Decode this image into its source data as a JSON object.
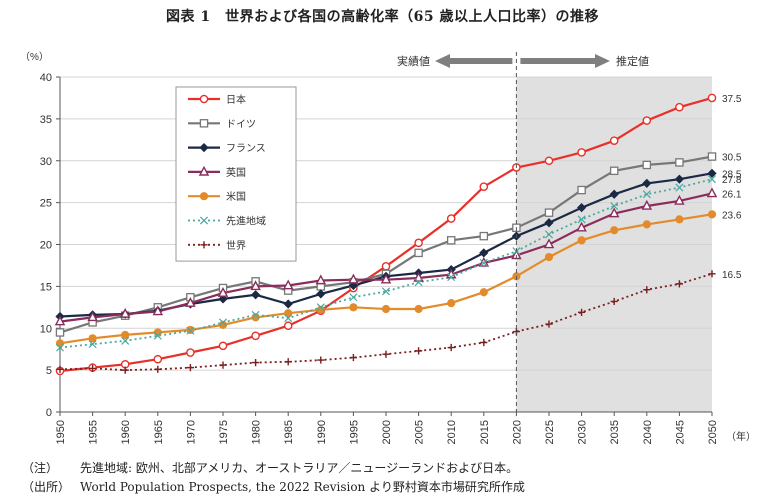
{
  "title": "図表 1　世界および各国の高齢化率（65 歳以上人口比率）の推移",
  "notes": [
    {
      "tag": "（注）",
      "text": "先進地域: 欧州、北部アメリカ、オーストラリア／ニュージーランドおよび日本。"
    },
    {
      "tag": "（出所）",
      "text": "World Population Prospects, the 2022 Revision より野村資本市場研究所作成"
    }
  ],
  "chart_data": {
    "type": "line",
    "title": "図表 1　世界および各国の高齢化率（65 歳以上人口比率）の推移",
    "ylabel": "（%）",
    "xlabel": "（年）",
    "ylim": [
      0,
      40
    ],
    "yticks": [
      0,
      5,
      10,
      15,
      20,
      25,
      30,
      35,
      40
    ],
    "x": [
      1950,
      1955,
      1960,
      1965,
      1970,
      1975,
      1980,
      1985,
      1990,
      1995,
      2000,
      2005,
      2010,
      2015,
      2020,
      2025,
      2030,
      2035,
      2040,
      2045,
      2050
    ],
    "grid": "horizontal",
    "legend_position": "top-left",
    "annotations": {
      "actual": "実績値",
      "projection": "推定値",
      "split_year": 2020,
      "projection_shaded": true,
      "shade_color": "#e0e0e0",
      "arrow_color": "#7f7f7f"
    },
    "series": [
      {
        "name": "日本",
        "color": "#e8302a",
        "marker": "circle-open",
        "line": "solid",
        "end_label": "37.5",
        "values": [
          4.9,
          5.3,
          5.7,
          6.3,
          7.1,
          7.9,
          9.1,
          10.3,
          12.1,
          14.8,
          17.4,
          20.2,
          23.1,
          26.9,
          29.2,
          30.0,
          31.0,
          32.4,
          34.8,
          36.4,
          37.5
        ]
      },
      {
        "name": "ドイツ",
        "color": "#777777",
        "marker": "square-open",
        "line": "solid",
        "end_label": "30.5",
        "values": [
          9.5,
          10.7,
          11.5,
          12.5,
          13.7,
          14.8,
          15.6,
          14.5,
          15.0,
          15.5,
          16.5,
          19.0,
          20.5,
          21.0,
          22.0,
          23.8,
          26.5,
          28.8,
          29.5,
          29.8,
          30.5
        ]
      },
      {
        "name": "フランス",
        "color": "#1b2a44",
        "marker": "diamond-filled",
        "line": "solid",
        "end_label": "28.5",
        "values": [
          11.4,
          11.6,
          11.7,
          12.1,
          12.9,
          13.5,
          14.0,
          12.9,
          14.1,
          15.1,
          16.2,
          16.6,
          17.0,
          19.0,
          21.0,
          22.6,
          24.4,
          26.0,
          27.3,
          27.8,
          28.5
        ]
      },
      {
        "name": "英国",
        "color": "#8b2d5c",
        "marker": "triangle-open",
        "line": "solid",
        "end_label": "26.1",
        "values": [
          10.8,
          11.3,
          11.7,
          12.0,
          13.0,
          14.2,
          15.0,
          15.1,
          15.7,
          15.8,
          15.8,
          16.0,
          16.4,
          17.8,
          18.7,
          20.0,
          22.0,
          23.7,
          24.6,
          25.2,
          26.1
        ]
      },
      {
        "name": "米国",
        "color": "#e38b2b",
        "marker": "circle-filled",
        "line": "solid",
        "end_label": "23.6",
        "values": [
          8.2,
          8.8,
          9.2,
          9.5,
          9.8,
          10.4,
          11.3,
          11.8,
          12.2,
          12.5,
          12.3,
          12.3,
          13.0,
          14.3,
          16.2,
          18.5,
          20.5,
          21.7,
          22.4,
          23.0,
          23.6
        ]
      },
      {
        "name": "先進地域",
        "color": "#4aa8a0",
        "marker": "x",
        "line": "dotted",
        "end_label": "27.8",
        "values": [
          7.7,
          8.1,
          8.5,
          9.1,
          9.7,
          10.7,
          11.6,
          11.2,
          12.5,
          13.7,
          14.4,
          15.5,
          16.1,
          17.8,
          19.2,
          21.2,
          23.0,
          24.6,
          26.0,
          26.8,
          27.8
        ]
      },
      {
        "name": "世界",
        "color": "#7a1e1e",
        "marker": "plus",
        "line": "dotted",
        "end_label": "16.5",
        "values": [
          5.1,
          5.2,
          5.0,
          5.1,
          5.3,
          5.6,
          5.9,
          6.0,
          6.2,
          6.5,
          6.9,
          7.3,
          7.7,
          8.3,
          9.6,
          10.5,
          11.9,
          13.2,
          14.6,
          15.3,
          16.5
        ]
      }
    ]
  }
}
